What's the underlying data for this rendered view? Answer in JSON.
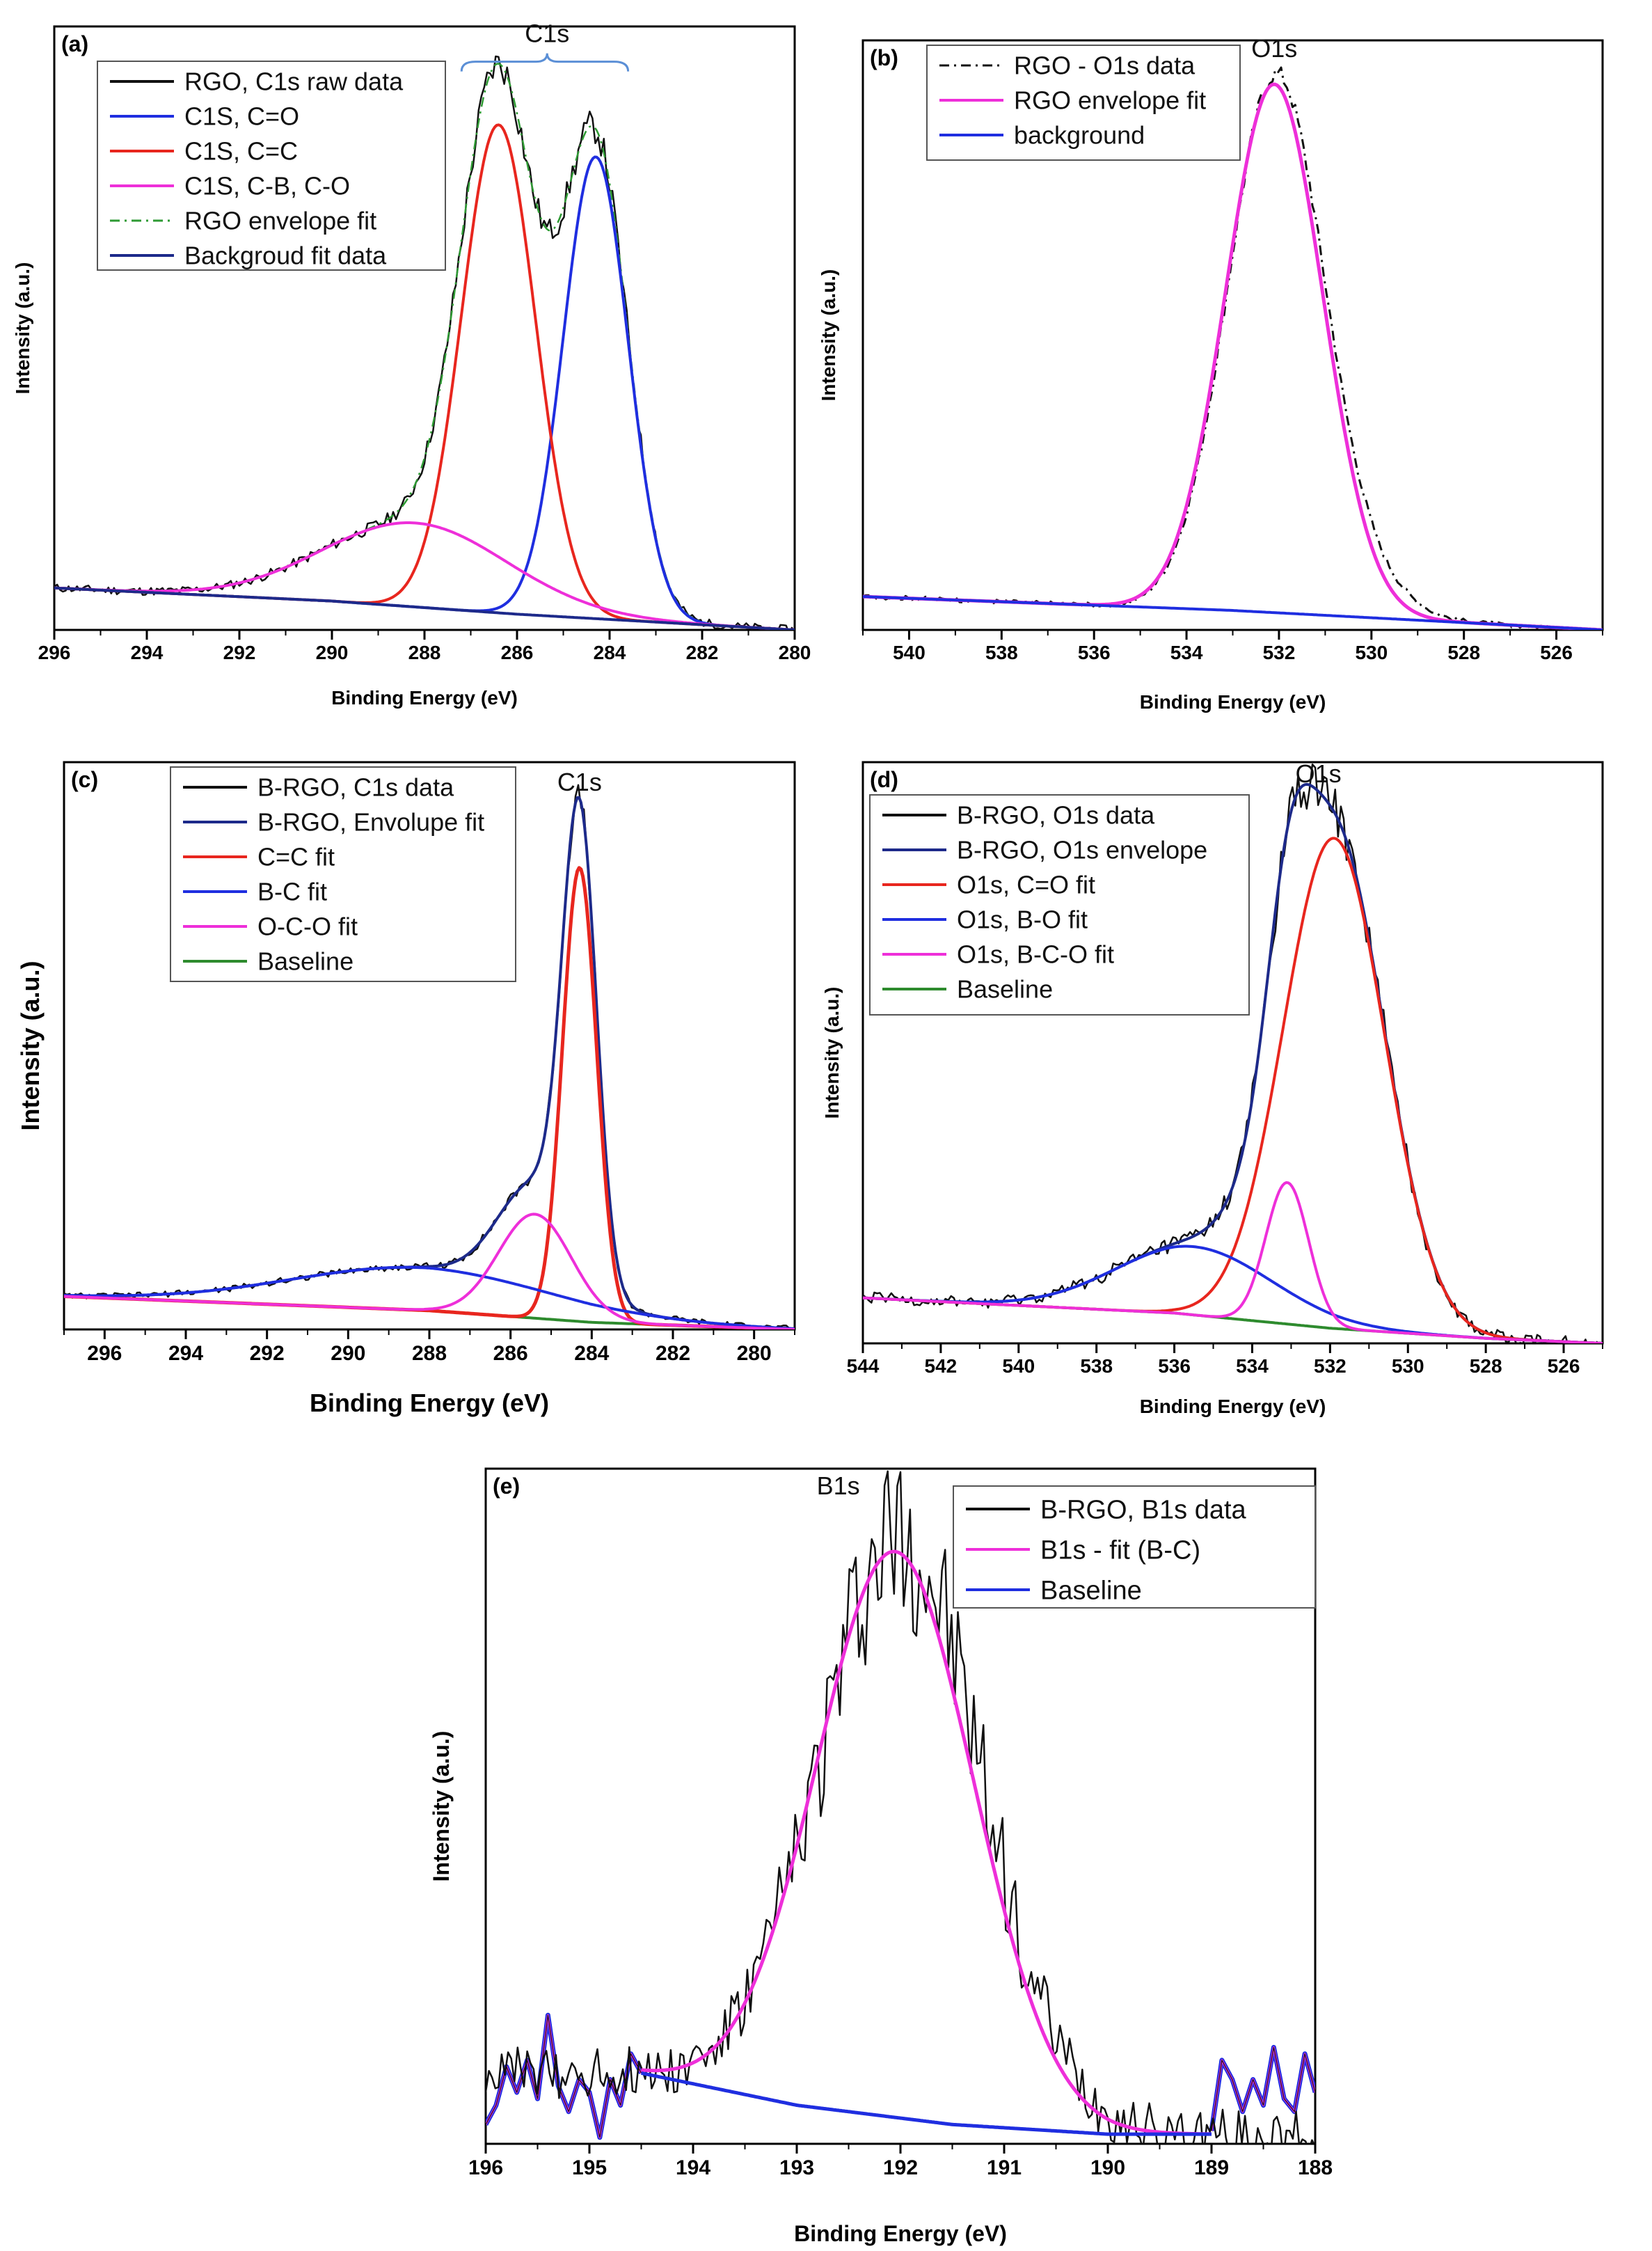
{
  "chart_data": [
    {
      "type": "line",
      "panel_label": "(a)",
      "xlabel": "Binding Energy (eV)",
      "ylabel": "Intensity (a.u.)",
      "xlim": [
        296,
        280
      ],
      "xticks": [
        296,
        294,
        292,
        290,
        288,
        286,
        284,
        282,
        280
      ],
      "ylim": [
        0,
        1.15
      ],
      "annotations": [
        {
          "text": "C1s",
          "x": 285.35,
          "y": 1.12,
          "bracket": [
            287.2,
            283.6
          ]
        }
      ],
      "legend": [
        {
          "label": "RGO, C1s raw data",
          "color": "#111111",
          "dash": "solid"
        },
        {
          "label": "C1S, C=O",
          "color": "#1f2ee0",
          "dash": "solid"
        },
        {
          "label": "C1S, C=C",
          "color": "#e8261e",
          "dash": "solid"
        },
        {
          "label": "C1S, C-B, C-O",
          "color": "#ee2fd9",
          "dash": "solid"
        },
        {
          "label": "RGO envelope fit",
          "color": "#2e9a33",
          "dash": "dashdot"
        },
        {
          "label": "Backgroud fit data",
          "color": "#1d2a8a",
          "dash": "solid"
        }
      ],
      "series": [
        {
          "name": "RGO, C1s raw data",
          "color": "#111111",
          "width": 2.5,
          "dash": "solid",
          "noise": 0.008,
          "baseline": "a",
          "peaks": [
            [
              286.4,
              0.93,
              0.8
            ],
            [
              284.3,
              0.88,
              0.7
            ],
            [
              288.2,
              0.16,
              2.0
            ]
          ]
        },
        {
          "name": "RGO envelope fit",
          "color": "#2e9a33",
          "width": 2.5,
          "dash": "dashdot",
          "baseline": "a",
          "peaks": [
            [
              286.4,
              0.93,
              0.8
            ],
            [
              284.3,
              0.88,
              0.7
            ],
            [
              288.2,
              0.16,
              2.0
            ]
          ]
        },
        {
          "name": "C1S, C=O",
          "color": "#1f2ee0",
          "width": 4,
          "dash": "solid",
          "baseline": "a",
          "peaks": [
            [
              284.3,
              0.88,
              0.7
            ]
          ]
        },
        {
          "name": "C1S, C=C",
          "color": "#e8261e",
          "width": 4,
          "dash": "solid",
          "baseline": "a",
          "peaks": [
            [
              286.4,
              0.93,
              0.8
            ]
          ]
        },
        {
          "name": "C1S, C-B, C-O",
          "color": "#ee2fd9",
          "width": 4,
          "dash": "solid",
          "baseline": "a",
          "peaks": [
            [
              288.2,
              0.16,
              2.0
            ]
          ]
        },
        {
          "name": "Backgroud fit data",
          "color": "#1d2a8a",
          "width": 4,
          "dash": "solid",
          "baseline": "a",
          "peaks": []
        }
      ],
      "baselines": {
        "a": [
          [
            296,
            0.08
          ],
          [
            290,
            0.055
          ],
          [
            286,
            0.03
          ],
          [
            280,
            0.0
          ]
        ]
      }
    },
    {
      "type": "line",
      "panel_label": "(b)",
      "xlabel": "Binding Energy (eV)",
      "ylabel": "Intensity (a.u.)",
      "xlim": [
        541,
        525
      ],
      "xticks": [
        540,
        538,
        536,
        534,
        532,
        530,
        528,
        526
      ],
      "ylim": [
        0,
        1.06
      ],
      "annotations": [
        {
          "text": "O1s",
          "x": 532.1,
          "y": 1.03
        }
      ],
      "legend": [
        {
          "label": "RGO - O1s data",
          "color": "#111111",
          "dash": "dashdot"
        },
        {
          "label": "RGO envelope fit",
          "color": "#ee2fd9",
          "dash": "solid"
        },
        {
          "label": "background",
          "color": "#1f2ee0",
          "dash": "solid"
        }
      ],
      "series": [
        {
          "name": "RGO - O1s data",
          "color": "#111111",
          "width": 3,
          "dash": "dashdot",
          "noise": 0.004,
          "baseline": "b",
          "peaks": [
            [
              532.05,
              0.97,
              1.05
            ],
            [
              529.8,
              0.03,
              0.8
            ]
          ]
        },
        {
          "name": "RGO envelope fit",
          "color": "#ee2fd9",
          "width": 5,
          "dash": "solid",
          "baseline": "b",
          "peaks": [
            [
              532.1,
              0.95,
              1.05
            ]
          ]
        },
        {
          "name": "background",
          "color": "#1f2ee0",
          "width": 4,
          "dash": "solid",
          "baseline": "b",
          "peaks": []
        }
      ],
      "baselines": {
        "b": [
          [
            541,
            0.06
          ],
          [
            533,
            0.035
          ],
          [
            525,
            0.0
          ]
        ]
      }
    },
    {
      "type": "line",
      "panel_label": "(c)",
      "xlabel": "Binding Energy (eV)",
      "ylabel": "Intensity (a.u.)",
      "xlim": [
        297,
        279
      ],
      "xticks": [
        296,
        294,
        292,
        290,
        288,
        286,
        284,
        282,
        280
      ],
      "ylim": [
        0,
        1.2
      ],
      "annotations": [
        {
          "text": "C1s",
          "x": 284.3,
          "y": 1.14
        }
      ],
      "legend": [
        {
          "label": "B-RGO, C1s data",
          "color": "#111111",
          "dash": "solid"
        },
        {
          "label": "B-RGO, Envolupe fit",
          "color": "#1d2a8a",
          "dash": "solid"
        },
        {
          "label": "C=C fit",
          "color": "#e8261e",
          "dash": "solid"
        },
        {
          "label": "B-C fit",
          "color": "#1f2ee0",
          "dash": "solid"
        },
        {
          "label": "O-C-O fit",
          "color": "#ee2fd9",
          "dash": "solid"
        },
        {
          "label": "Baseline",
          "color": "#2e8b2e",
          "dash": "solid"
        }
      ],
      "series": [
        {
          "name": "Baseline",
          "color": "#2e8b2e",
          "width": 4,
          "dash": "solid",
          "baseline": "c",
          "peaks": []
        },
        {
          "name": "B-RGO, C1s data",
          "color": "#111111",
          "width": 2.5,
          "dash": "solid",
          "noise": 0.006,
          "baseline": "c",
          "peaks": [
            [
              284.3,
              0.96,
              0.42
            ],
            [
              285.4,
              0.22,
              0.9
            ],
            [
              288.2,
              0.09,
              3.2
            ]
          ]
        },
        {
          "name": "B-RGO, Envolupe fit",
          "color": "#1d2a8a",
          "width": 4,
          "dash": "solid",
          "baseline": "c",
          "peaks": [
            [
              284.3,
              0.96,
              0.42
            ],
            [
              285.4,
              0.22,
              0.9
            ],
            [
              288.2,
              0.09,
              3.2
            ]
          ]
        },
        {
          "name": "C=C fit",
          "color": "#e8261e",
          "width": 5,
          "dash": "solid",
          "baseline": "c",
          "peaks": [
            [
              284.3,
              0.96,
              0.42
            ]
          ]
        },
        {
          "name": "B-C fit",
          "color": "#1f2ee0",
          "width": 4,
          "dash": "solid",
          "baseline": "c",
          "peaks": [
            [
              288.2,
              0.09,
              3.2
            ]
          ]
        },
        {
          "name": "O-C-O fit",
          "color": "#ee2fd9",
          "width": 4,
          "dash": "solid",
          "baseline": "c",
          "peaks": [
            [
              285.4,
              0.22,
              0.9
            ]
          ]
        }
      ],
      "baselines": {
        "c": [
          [
            297,
            0.07
          ],
          [
            288,
            0.04
          ],
          [
            284,
            0.015
          ],
          [
            279,
            0.0
          ]
        ]
      }
    },
    {
      "type": "line",
      "panel_label": "(d)",
      "xlabel": "Binding Energy (eV)",
      "ylabel": "Intensity (a.u.)",
      "xlim": [
        544,
        525
      ],
      "xticks": [
        544,
        542,
        540,
        538,
        536,
        534,
        532,
        530,
        528,
        526
      ],
      "ylim": [
        0,
        1.15
      ],
      "annotations": [
        {
          "text": "O1s",
          "x": 532.3,
          "y": 1.11
        }
      ],
      "legend": [
        {
          "label": "B-RGO, O1s data",
          "color": "#111111",
          "dash": "solid"
        },
        {
          "label": "B-RGO, O1s envelope",
          "color": "#1d2a8a",
          "dash": "solid"
        },
        {
          "label": "O1s, C=O fit",
          "color": "#e8261e",
          "dash": "solid"
        },
        {
          "label": "O1s, B-O fit",
          "color": "#1f2ee0",
          "dash": "solid"
        },
        {
          "label": "O1s, B-C-O fit",
          "color": "#ee2fd9",
          "dash": "solid"
        },
        {
          "label": "Baseline",
          "color": "#2e8b2e",
          "dash": "solid"
        }
      ],
      "series": [
        {
          "name": "Baseline",
          "color": "#2e8b2e",
          "width": 4,
          "dash": "solid",
          "baseline": "d",
          "peaks": []
        },
        {
          "name": "B-RGO, O1s data",
          "color": "#111111",
          "width": 2.5,
          "dash": "solid",
          "noise": 0.012,
          "baseline": "d",
          "peaks": [
            [
              531.9,
              0.97,
              1.3
            ],
            [
              533.1,
              0.28,
              0.55
            ],
            [
              535.5,
              0.135,
              2.0
            ]
          ]
        },
        {
          "name": "B-RGO, O1s envelope",
          "color": "#1d2a8a",
          "width": 4,
          "dash": "solid",
          "baseline": "d",
          "peaks": [
            [
              531.9,
              0.97,
              1.3
            ],
            [
              533.1,
              0.28,
              0.55
            ],
            [
              535.5,
              0.135,
              2.0
            ]
          ]
        },
        {
          "name": "O1s, C=O fit",
          "color": "#e8261e",
          "width": 4,
          "dash": "solid",
          "baseline": "d",
          "peaks": [
            [
              531.9,
              0.97,
              1.3
            ]
          ]
        },
        {
          "name": "O1s, B-O fit",
          "color": "#1f2ee0",
          "width": 4,
          "dash": "solid",
          "baseline": "d",
          "peaks": [
            [
              535.5,
              0.135,
              2.0
            ]
          ]
        },
        {
          "name": "O1s, B-C-O fit",
          "color": "#ee2fd9",
          "width": 4,
          "dash": "solid",
          "baseline": "d",
          "peaks": [
            [
              533.1,
              0.28,
              0.55
            ]
          ]
        }
      ],
      "baselines": {
        "d": [
          [
            544,
            0.09
          ],
          [
            536,
            0.06
          ],
          [
            532,
            0.03
          ],
          [
            528,
            0.01
          ],
          [
            525,
            0.0
          ]
        ]
      }
    },
    {
      "type": "line",
      "panel_label": "(e)",
      "xlabel": "Binding Energy (eV)",
      "ylabel": "Intensity (a.u.)",
      "xlim": [
        196,
        188
      ],
      "xticks": [
        196,
        195,
        194,
        193,
        192,
        191,
        190,
        189,
        188
      ],
      "ylim": [
        0,
        1.05
      ],
      "annotations": [
        {
          "text": "B1s",
          "x": 192.6,
          "y": 1.01
        }
      ],
      "legend": [
        {
          "label": "B-RGO, B1s data",
          "color": "#111111",
          "dash": "solid"
        },
        {
          "label": "B1s - fit (B-C)",
          "color": "#ee2fd9",
          "dash": "solid"
        },
        {
          "label": "Baseline",
          "color": "#1f2ee0",
          "dash": "solid"
        }
      ],
      "series": [
        {
          "name": "B-RGO, B1s data",
          "color": "#111111",
          "width": 2.5,
          "dash": "solid",
          "noise": 0.04,
          "baseline": "e",
          "peaks": [
            [
              192.0,
              0.9,
              0.78
            ]
          ]
        },
        {
          "name": "B1s - fit (B-C)",
          "color": "#ee2fd9",
          "width": 5,
          "dash": "solid",
          "baseline": "e",
          "range": [
            194.5,
            189.0
          ],
          "peaks": [
            [
              192.05,
              0.88,
              0.76
            ]
          ]
        },
        {
          "name": "Baseline",
          "color": "#1f2ee0",
          "width": 5,
          "dash": "solid",
          "baseline": "e",
          "range": [
            194.5,
            189.0
          ],
          "peaks": []
        }
      ],
      "edges": {
        "e": {
          "color": "#1f2ee0",
          "overlay": "#ee2fd9",
          "left": [
            [
              196.0,
              0.03
            ],
            [
              195.9,
              0.06
            ],
            [
              195.8,
              0.12
            ],
            [
              195.7,
              0.08
            ],
            [
              195.6,
              0.13
            ],
            [
              195.5,
              0.07
            ],
            [
              195.4,
              0.2
            ],
            [
              195.3,
              0.09
            ],
            [
              195.2,
              0.05
            ],
            [
              195.1,
              0.1
            ],
            [
              195.0,
              0.08
            ],
            [
              194.9,
              0.01
            ],
            [
              194.8,
              0.1
            ],
            [
              194.7,
              0.06
            ],
            [
              194.6,
              0.14
            ],
            [
              194.5,
              0.11
            ]
          ],
          "right": [
            [
              189.0,
              0.02
            ],
            [
              188.9,
              0.13
            ],
            [
              188.8,
              0.1
            ],
            [
              188.7,
              0.05
            ],
            [
              188.6,
              0.1
            ],
            [
              188.5,
              0.06
            ],
            [
              188.4,
              0.15
            ],
            [
              188.3,
              0.07
            ],
            [
              188.2,
              0.05
            ],
            [
              188.1,
              0.14
            ],
            [
              188.0,
              0.08
            ]
          ]
        }
      },
      "baselines": {
        "e": [
          [
            194.5,
            0.11
          ],
          [
            193.0,
            0.06
          ],
          [
            191.5,
            0.03
          ],
          [
            190.0,
            0.015
          ],
          [
            189.0,
            0.015
          ]
        ]
      }
    }
  ]
}
